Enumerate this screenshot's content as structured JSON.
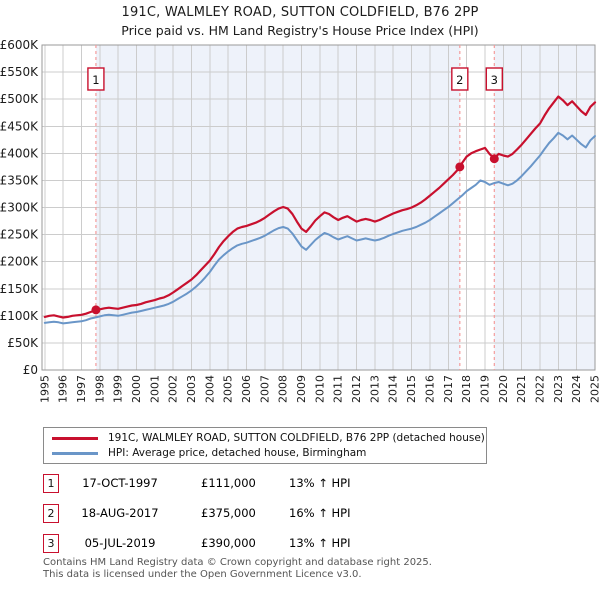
{
  "window": {
    "title": "191C, WALMLEY ROAD, SUTTON COLDFIELD, B76 2PP",
    "subtitle": "Price paid vs. HM Land Registry's House Price Index (HPI)"
  },
  "colors": {
    "accent_red": "#c8102e",
    "hpi_blue": "#6a96c8",
    "band": "#eef2fa",
    "grid": "#cccccc",
    "plot_border": "#9a9a9a",
    "marker_line": "#f49c9c",
    "text_dark": "#1c1c1c",
    "footer_gray": "#555555"
  },
  "legend": {
    "items": [
      {
        "label": "191C, WALMLEY ROAD, SUTTON COLDFIELD, B76 2PP (detached house)",
        "color": "#c8102e"
      },
      {
        "label": "HPI: Average price, detached house, Birmingham",
        "color": "#6a96c8"
      }
    ]
  },
  "transactions": {
    "rows": [
      {
        "num": "1",
        "date": "17-OCT-1997",
        "price": "£111,000",
        "vs_hpi": "13% ↑ HPI"
      },
      {
        "num": "2",
        "date": "18-AUG-2017",
        "price": "£375,000",
        "vs_hpi": "16% ↑ HPI"
      },
      {
        "num": "3",
        "date": "05-JUL-2019",
        "price": "£390,000",
        "vs_hpi": "13% ↑ HPI"
      }
    ]
  },
  "footer": {
    "line1": "Contains HM Land Registry data © Crown copyright and database right 2025.",
    "line2": "This data is licensed under the Open Government Licence v3.0."
  },
  "chart_data": {
    "type": "line",
    "title": "191C, WALMLEY ROAD, SUTTON COLDFIELD, B76 2PP",
    "subtitle": "Price paid vs. HM Land Registry's House Price Index (HPI)",
    "grid": true,
    "legend_position": "bottom",
    "x_axis": {
      "min": 1994.85,
      "max": 2025.0,
      "ticks": [
        1995,
        1996,
        1997,
        1998,
        1999,
        2000,
        2001,
        2002,
        2003,
        2004,
        2005,
        2006,
        2007,
        2008,
        2009,
        2010,
        2011,
        2012,
        2013,
        2014,
        2015,
        2016,
        2017,
        2018,
        2019,
        2020,
        2021,
        2022,
        2023,
        2024,
        2025
      ]
    },
    "y_axis": {
      "min": 0,
      "max": 600000,
      "ticks": [
        {
          "value": 600000,
          "label": "£600K"
        },
        {
          "value": 550000,
          "label": "£550K"
        },
        {
          "value": 500000,
          "label": "£500K"
        },
        {
          "value": 450000,
          "label": "£450K"
        },
        {
          "value": 400000,
          "label": "£400K"
        },
        {
          "value": 350000,
          "label": "£350K"
        },
        {
          "value": 300000,
          "label": "£300K"
        },
        {
          "value": 250000,
          "label": "£250K"
        },
        {
          "value": 200000,
          "label": "£200K"
        },
        {
          "value": 150000,
          "label": "£150K"
        },
        {
          "value": 100000,
          "label": "£100K"
        },
        {
          "value": 50000,
          "label": "£50K"
        },
        {
          "value": 0,
          "label": "£0"
        }
      ]
    },
    "bands": [
      {
        "from": 1997.79,
        "to": 2017.63
      },
      {
        "from": 2019.51,
        "to": 2025.0
      }
    ],
    "series": [
      {
        "name": "191C, WALMLEY ROAD, SUTTON COLDFIELD, B76 2PP (detached house)",
        "color": "#c8102e",
        "x_start": 1995,
        "x_step": 0.25,
        "values_gbp_k": [
          98,
          100,
          101,
          99,
          97,
          98,
          100,
          101,
          102,
          104,
          107,
          110,
          112,
          114,
          115,
          114,
          113,
          115,
          117,
          119,
          120,
          122,
          125,
          127,
          129,
          132,
          134,
          138,
          143,
          149,
          155,
          161,
          167,
          175,
          184,
          193,
          202,
          214,
          227,
          238,
          247,
          255,
          261,
          264,
          266,
          269,
          272,
          276,
          281,
          287,
          293,
          298,
          301,
          298,
          288,
          274,
          261,
          255,
          265,
          276,
          284,
          291,
          288,
          282,
          277,
          281,
          284,
          279,
          274,
          277,
          279,
          277,
          274,
          277,
          281,
          285,
          289,
          292,
          295,
          297,
          300,
          304,
          309,
          315,
          322,
          329,
          336,
          344,
          352,
          360,
          369,
          382,
          394,
          400,
          404,
          407,
          410,
          399,
          391,
          399,
          396,
          394,
          399,
          407,
          416,
          426,
          436,
          446,
          455,
          470,
          483,
          494,
          505,
          498,
          489,
          496,
          487,
          478,
          471,
          486,
          494
        ]
      },
      {
        "name": "HPI: Average price, detached house, Birmingham",
        "color": "#6a96c8",
        "x_start": 1995,
        "x_step": 0.25,
        "values_gbp_k": [
          87,
          88,
          89,
          88,
          86,
          87,
          88,
          89,
          90,
          92,
          95,
          97,
          99,
          101,
          102,
          101,
          100,
          102,
          104,
          106,
          107,
          109,
          111,
          113,
          115,
          117,
          119,
          122,
          126,
          131,
          136,
          141,
          147,
          154,
          162,
          171,
          181,
          193,
          204,
          212,
          219,
          225,
          230,
          233,
          235,
          238,
          241,
          244,
          248,
          253,
          258,
          262,
          264,
          261,
          252,
          240,
          228,
          222,
          231,
          240,
          247,
          253,
          250,
          245,
          241,
          244,
          247,
          243,
          239,
          241,
          243,
          241,
          239,
          241,
          244,
          248,
          251,
          254,
          257,
          259,
          261,
          264,
          268,
          272,
          277,
          283,
          289,
          295,
          301,
          308,
          315,
          322,
          330,
          336,
          342,
          350,
          347,
          342,
          345,
          347,
          344,
          341,
          344,
          350,
          358,
          367,
          376,
          386,
          396,
          408,
          419,
          428,
          438,
          433,
          426,
          433,
          425,
          417,
          411,
          424,
          432
        ]
      }
    ],
    "sale_markers": [
      {
        "n": "1",
        "x": 1997.79,
        "price_gbp": 111000
      },
      {
        "n": "2",
        "x": 2017.63,
        "price_gbp": 375000
      },
      {
        "n": "3",
        "x": 2019.51,
        "price_gbp": 390000
      }
    ]
  }
}
